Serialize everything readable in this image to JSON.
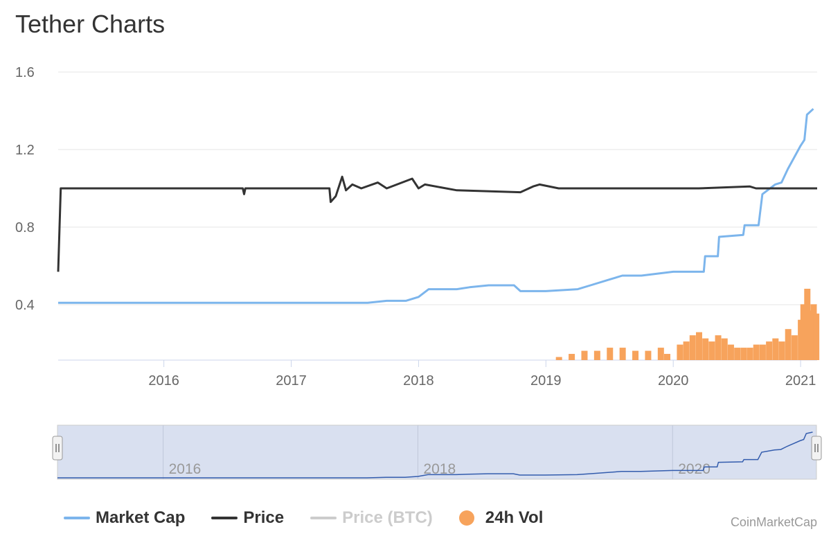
{
  "page": {
    "title": "Tether Charts",
    "credit": "CoinMarketCap"
  },
  "legend": [
    {
      "label": "Market Cap",
      "color": "#7cb5ec",
      "type": "line",
      "enabled": true
    },
    {
      "label": "Price",
      "color": "#333333",
      "type": "line",
      "enabled": true
    },
    {
      "label": "Price (BTC)",
      "color": "#cccccc",
      "type": "line",
      "enabled": false
    },
    {
      "label": "24h Vol",
      "color": "#f7a35c",
      "type": "dot",
      "enabled": true
    }
  ],
  "chart_data": {
    "type": "line",
    "y_axis": {
      "ticks": [
        0.4,
        0.8,
        1.2,
        1.6
      ],
      "range": [
        0.4,
        1.6
      ]
    },
    "x_axis": {
      "ticks": [
        "2016",
        "2017",
        "2018",
        "2019",
        "2020",
        "2021"
      ],
      "range": [
        2015.17,
        2021.13
      ]
    },
    "navigator": {
      "ticks": [
        "2016",
        "2018",
        "2020"
      ]
    },
    "grid": true,
    "series": [
      {
        "name": "Price",
        "color": "#333333",
        "points": [
          [
            2015.17,
            0.57
          ],
          [
            2015.19,
            1.0
          ],
          [
            2016.62,
            1.0
          ],
          [
            2016.63,
            0.97
          ],
          [
            2016.64,
            1.0
          ],
          [
            2017.3,
            1.0
          ],
          [
            2017.31,
            0.93
          ],
          [
            2017.35,
            0.96
          ],
          [
            2017.4,
            1.06
          ],
          [
            2017.43,
            0.99
          ],
          [
            2017.48,
            1.02
          ],
          [
            2017.55,
            1.0
          ],
          [
            2017.68,
            1.03
          ],
          [
            2017.75,
            1.0
          ],
          [
            2017.95,
            1.05
          ],
          [
            2018.0,
            1.0
          ],
          [
            2018.05,
            1.02
          ],
          [
            2018.3,
            0.99
          ],
          [
            2018.8,
            0.98
          ],
          [
            2018.9,
            1.01
          ],
          [
            2018.95,
            1.02
          ],
          [
            2019.1,
            1.0
          ],
          [
            2019.5,
            1.0
          ],
          [
            2019.9,
            1.0
          ],
          [
            2020.2,
            1.0
          ],
          [
            2020.6,
            1.01
          ],
          [
            2020.65,
            1.0
          ],
          [
            2021.13,
            1.0
          ]
        ]
      },
      {
        "name": "Market Cap",
        "color": "#7cb5ec",
        "points": [
          [
            2015.17,
            0.41
          ],
          [
            2017.2,
            0.41
          ],
          [
            2017.5,
            0.41
          ],
          [
            2017.6,
            0.41
          ],
          [
            2017.75,
            0.42
          ],
          [
            2017.9,
            0.42
          ],
          [
            2018.0,
            0.44
          ],
          [
            2018.08,
            0.48
          ],
          [
            2018.3,
            0.48
          ],
          [
            2018.4,
            0.49
          ],
          [
            2018.55,
            0.5
          ],
          [
            2018.75,
            0.5
          ],
          [
            2018.8,
            0.47
          ],
          [
            2018.9,
            0.47
          ],
          [
            2019.0,
            0.47
          ],
          [
            2019.25,
            0.48
          ],
          [
            2019.35,
            0.5
          ],
          [
            2019.5,
            0.53
          ],
          [
            2019.6,
            0.55
          ],
          [
            2019.75,
            0.55
          ],
          [
            2020.0,
            0.57
          ],
          [
            2020.24,
            0.57
          ],
          [
            2020.25,
            0.65
          ],
          [
            2020.35,
            0.65
          ],
          [
            2020.36,
            0.75
          ],
          [
            2020.55,
            0.76
          ],
          [
            2020.56,
            0.81
          ],
          [
            2020.67,
            0.81
          ],
          [
            2020.7,
            0.97
          ],
          [
            2020.8,
            1.02
          ],
          [
            2020.85,
            1.03
          ],
          [
            2020.9,
            1.1
          ],
          [
            2021.0,
            1.22
          ],
          [
            2021.03,
            1.25
          ],
          [
            2021.05,
            1.38
          ],
          [
            2021.1,
            1.41
          ]
        ]
      },
      {
        "name": "24h Vol",
        "color": "#f7a35c",
        "baseline": 0.12,
        "bars": [
          [
            2019.1,
            0.13
          ],
          [
            2019.2,
            0.14
          ],
          [
            2019.3,
            0.15
          ],
          [
            2019.4,
            0.15
          ],
          [
            2019.5,
            0.16
          ],
          [
            2019.6,
            0.16
          ],
          [
            2019.7,
            0.15
          ],
          [
            2019.8,
            0.15
          ],
          [
            2019.9,
            0.16
          ],
          [
            2019.95,
            0.14
          ],
          [
            2020.05,
            0.17
          ],
          [
            2020.1,
            0.18
          ],
          [
            2020.15,
            0.2
          ],
          [
            2020.2,
            0.21
          ],
          [
            2020.25,
            0.19
          ],
          [
            2020.3,
            0.18
          ],
          [
            2020.35,
            0.2
          ],
          [
            2020.4,
            0.19
          ],
          [
            2020.45,
            0.17
          ],
          [
            2020.5,
            0.16
          ],
          [
            2020.55,
            0.16
          ],
          [
            2020.6,
            0.16
          ],
          [
            2020.65,
            0.17
          ],
          [
            2020.7,
            0.17
          ],
          [
            2020.75,
            0.18
          ],
          [
            2020.8,
            0.19
          ],
          [
            2020.85,
            0.18
          ],
          [
            2020.9,
            0.22
          ],
          [
            2020.95,
            0.2
          ],
          [
            2021.0,
            0.25
          ],
          [
            2021.02,
            0.3
          ],
          [
            2021.05,
            0.35
          ],
          [
            2021.08,
            0.28
          ],
          [
            2021.1,
            0.3
          ],
          [
            2021.12,
            0.27
          ]
        ]
      }
    ]
  }
}
